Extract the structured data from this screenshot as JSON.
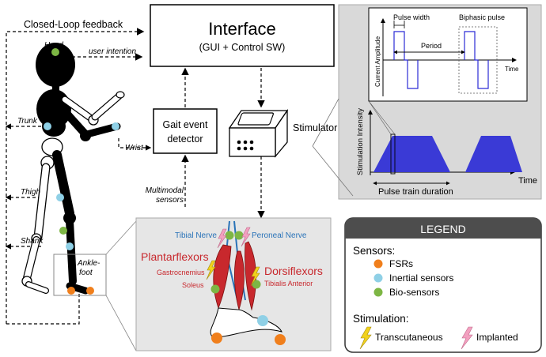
{
  "feedback": {
    "closed_loop": "Closed-Loop feedback"
  },
  "interface": {
    "title": "Interface",
    "subtitle": "(GUI + Control SW)"
  },
  "gait": {
    "line1": "Gait event",
    "line2": "detector"
  },
  "stimulator": {
    "label": "Stimulator"
  },
  "body_labels": {
    "head": "Head",
    "user_intention": "user intention",
    "trunk": "Trunk",
    "wrist": "Wrist",
    "thigh": "Thigh",
    "shank": "Shank",
    "ankle_foot_1": "Ankle-",
    "ankle_foot_2": "foot"
  },
  "multimodal": {
    "line1": "Multimodal",
    "line2": "sensors"
  },
  "waveform": {
    "pulse_width": "Pulse width",
    "biphasic_pulse": "Biphasic pulse",
    "period": "Period",
    "current_amplitude": "Current Amplitude",
    "time": "Time"
  },
  "train": {
    "ylabel": "Stimulation Intensity",
    "time": "Time",
    "duration": "Pulse train duration"
  },
  "muscles": {
    "tibial_nerve": "Tibial Nerve",
    "peroneal_nerve": "Peroneal Nerve",
    "plantarflexors": "Plantarflexors",
    "gastrocnemius": "Gastrocnemius",
    "soleus": "Soleus",
    "dorsiflexors": "Dorsiflexors",
    "tibialis_anterior": "Tibialis Anterior"
  },
  "legend": {
    "title": "LEGEND",
    "sensors_heading": "Sensors:",
    "fsrs": "FSRs",
    "inertial": "Inertial sensors",
    "bio": "Bio-sensors",
    "stimulation_heading": "Stimulation:",
    "transcutaneous": "Transcutaneous",
    "implanted": "Implanted"
  },
  "colors": {
    "fsr": "#f07f1c",
    "inertial": "#8fd0e6",
    "bio": "#7db644",
    "stim_fill": "#3a3ad6",
    "pulse": "#2b2bd6",
    "muscle_red": "#c8282d",
    "nerve_blue": "#2a73b8",
    "lightning_yellow": "#f1d21c",
    "lightning_pink": "#f3a0c0",
    "legend_header": "#4d4d4d",
    "panel_gray": "#d9d9d9"
  }
}
